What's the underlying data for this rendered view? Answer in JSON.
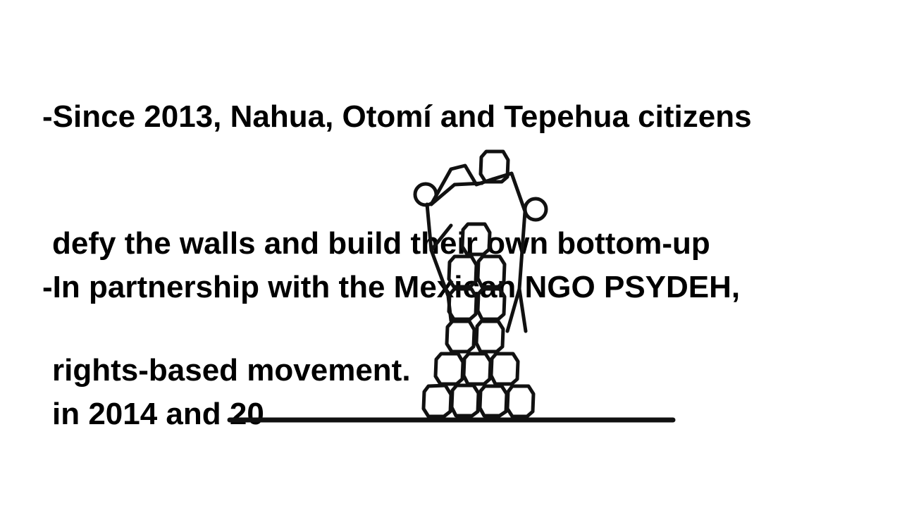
{
  "slide": {
    "bullet1": {
      "line1": "-Since 2013, Nahua, Otomí and Tepehua citizens",
      "line2": "defy the walls and build their own bottom-up",
      "line3": "rights-based movement."
    },
    "bullet2": {
      "line1": "-In partnership with the Mexican NGO PSYDEH,",
      "line2": "in 2014 and 20"
    }
  },
  "drawing": {
    "subject": "stick-figure-building-tower-of-stones",
    "stroke_color": "#111111"
  }
}
